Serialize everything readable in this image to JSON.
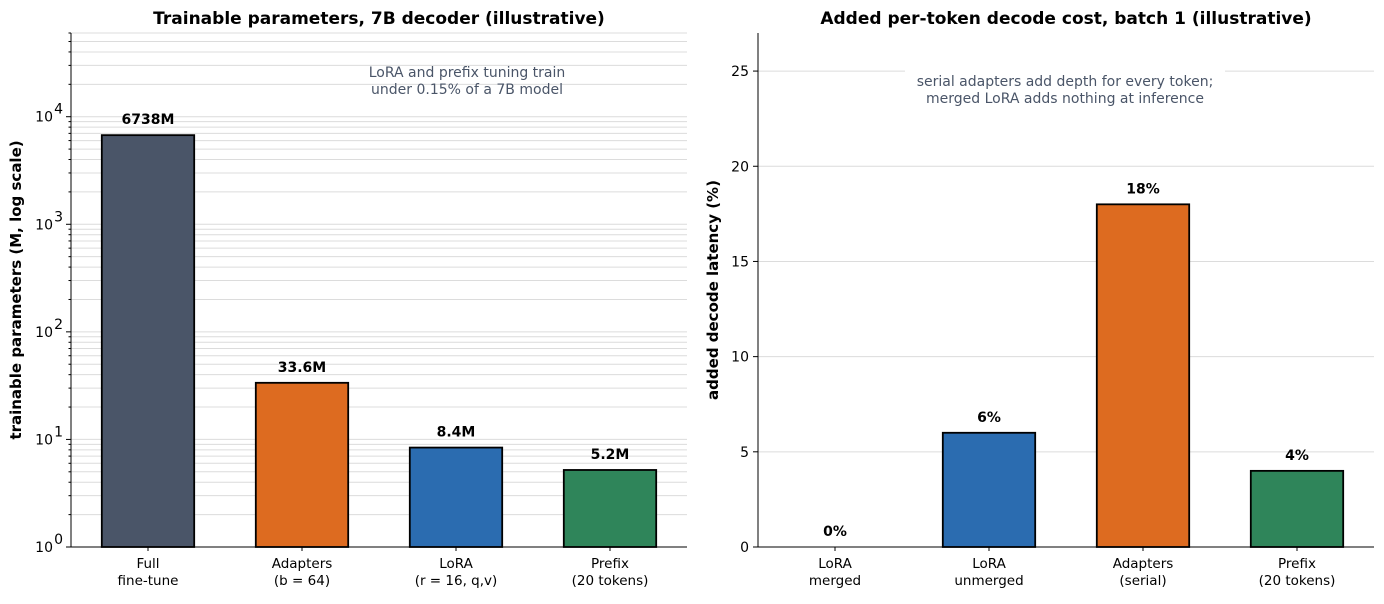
{
  "chart_data": [
    {
      "type": "bar",
      "title": "Trainable parameters, 7B decoder (illustrative)",
      "xlabel": "",
      "ylabel": "trainable parameters (M, log scale)",
      "yscale": "log",
      "ylim": [
        1,
        60000
      ],
      "ytick_labels": [
        {
          "value": 1,
          "base": "10",
          "exp": "0"
        },
        {
          "value": 10,
          "base": "10",
          "exp": "1"
        },
        {
          "value": 100,
          "base": "10",
          "exp": "2"
        },
        {
          "value": 1000,
          "base": "10",
          "exp": "3"
        },
        {
          "value": 10000,
          "base": "10",
          "exp": "4"
        }
      ],
      "categories": [
        [
          "Full",
          "fine-tune"
        ],
        [
          "Adapters",
          "(b = 64)"
        ],
        [
          "LoRA",
          "(r = 16, q,v)"
        ],
        [
          "Prefix",
          "(20 tokens)"
        ]
      ],
      "values": [
        6738,
        33.6,
        8.4,
        5.2
      ],
      "data_labels": [
        "6738M",
        "33.6M",
        "8.4M",
        "5.2M"
      ],
      "colors": [
        "#4a5568",
        "#dd6b20",
        "#2b6cb0",
        "#2f855a"
      ],
      "annotation": [
        "LoRA and prefix tuning train",
        "under 0.15% of a 7B model"
      ],
      "grid": true
    },
    {
      "type": "bar",
      "title": "Added per-token decode cost, batch 1 (illustrative)",
      "xlabel": "",
      "ylabel": "added decode latency (%)",
      "ylim": [
        0,
        27
      ],
      "yticks": [
        0,
        5,
        10,
        15,
        20,
        25
      ],
      "categories": [
        [
          "LoRA",
          "merged"
        ],
        [
          "LoRA",
          "unmerged"
        ],
        [
          "Adapters",
          "(serial)"
        ],
        [
          "Prefix",
          "(20 tokens)"
        ]
      ],
      "values": [
        0,
        6,
        18,
        4
      ],
      "data_labels": [
        "0%",
        "6%",
        "18%",
        "4%"
      ],
      "colors": [
        "#4a5568",
        "#2b6cb0",
        "#dd6b20",
        "#2f855a"
      ],
      "annotation": [
        "serial adapters add depth for every token;",
        "merged LoRA adds nothing at inference"
      ],
      "grid": true
    }
  ]
}
